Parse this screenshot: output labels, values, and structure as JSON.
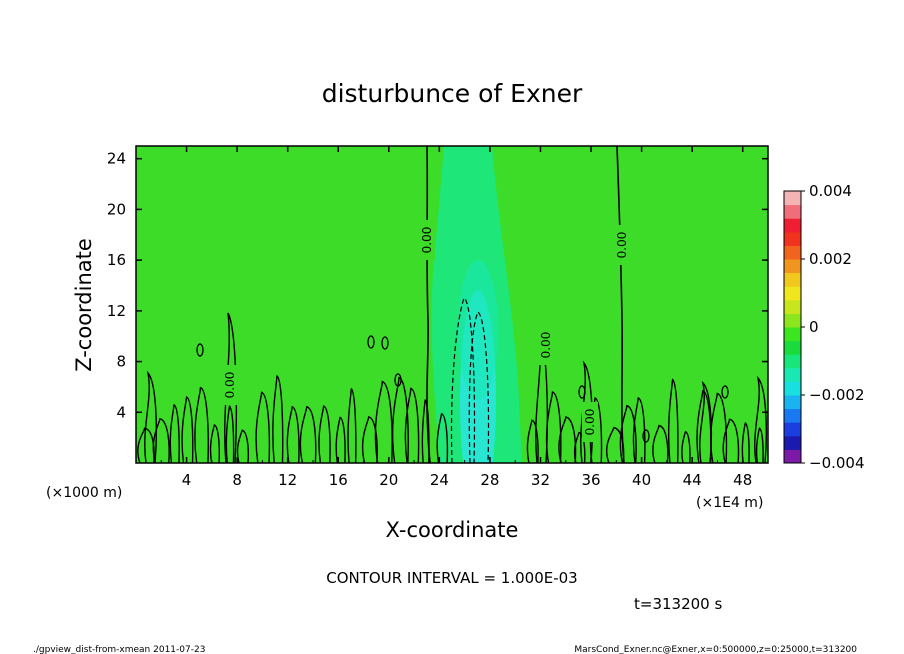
{
  "chart_data": {
    "type": "heatmap",
    "title": "disturbunce of Exner",
    "xlabel": "X-coordinate",
    "ylabel": "Z-coordinate",
    "x_unit_label": "(×1E4 m)",
    "y_unit_label": "(×1000 m)",
    "xlim": [
      0,
      50
    ],
    "ylim": [
      0,
      25
    ],
    "x_ticks": [
      4,
      8,
      12,
      16,
      20,
      24,
      28,
      32,
      36,
      40,
      44,
      48
    ],
    "y_ticks": [
      4,
      8,
      12,
      16,
      20,
      24
    ],
    "colorbar": {
      "min": -0.004,
      "max": 0.004,
      "tick_values": [
        0.004,
        0.002,
        0,
        -0.002,
        -0.004
      ],
      "tick_labels": [
        "0.004",
        "0.002",
        "0",
        "−0.002",
        "−0.004"
      ],
      "colors": [
        "#7a1aa6",
        "#1a1ab0",
        "#1a3ee0",
        "#1a78f0",
        "#19b4f0",
        "#19e0e0",
        "#19e8b4",
        "#19e67a",
        "#19dc3c",
        "#3ce61e",
        "#8ce61e",
        "#c8e61e",
        "#f0e61e",
        "#f0c81e",
        "#f0961e",
        "#f0641e",
        "#f0321e",
        "#f01e32",
        "#f06e7a",
        "#f5b4b4"
      ]
    },
    "contour_labels": [
      "0.00",
      "0.00",
      "0.00",
      "0.00",
      "0.00"
    ],
    "contour_interval_text": "CONTOUR INTERVAL = 1.000E-03",
    "time_text": "t=313200 s"
  },
  "footer": {
    "left": "./gpview_dist-from-xmean  2011-07-23",
    "right": "MarsCond_Exner.nc@Exner,x=0:500000,z=0:25000,t=313200"
  },
  "colors": {
    "background_field": "#3cdc28",
    "anomaly_teal": "#1ee678",
    "anomaly_cyan": "#28e6d2"
  }
}
